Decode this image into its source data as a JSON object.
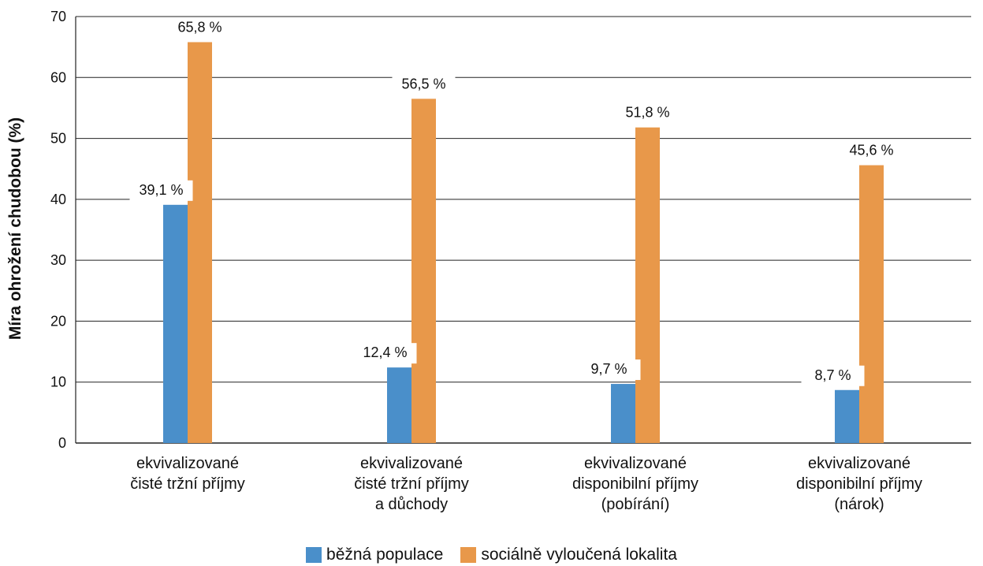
{
  "chart_data": {
    "type": "bar",
    "ylabel": "Míra ohrožení chudobou (%)",
    "ylim": [
      0,
      70
    ],
    "yticks": [
      "0",
      "10",
      "20",
      "30",
      "40",
      "50",
      "60",
      "70"
    ],
    "grid": true,
    "categories": [
      [
        "ekvivalizované",
        "čisté tržní příjmy"
      ],
      [
        "ekvivalizované",
        "čisté tržní příjmy",
        "a důchody"
      ],
      [
        "ekvivalizované",
        "disponibilní příjmy",
        "(pobírání)"
      ],
      [
        "ekvivalizované",
        "disponibilní příjmy",
        "(nárok)"
      ]
    ],
    "series": [
      {
        "name": "běžná populace",
        "color": "#4a8fca",
        "values": [
          39.1,
          12.4,
          9.7,
          8.7
        ],
        "labels": [
          "39,1 %",
          "12,4 %",
          "9,7 %",
          "8,7 %"
        ]
      },
      {
        "name": "sociálně vyloučená lokalita",
        "color": "#e8984a",
        "values": [
          65.8,
          56.5,
          51.8,
          45.6
        ],
        "labels": [
          "65,8 %",
          "56,5 %",
          "51,8 %",
          "45,6 %"
        ]
      }
    ],
    "legend_position": "bottom"
  }
}
